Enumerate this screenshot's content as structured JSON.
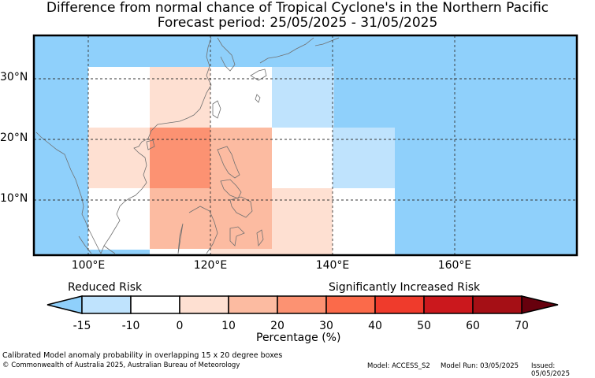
{
  "title_line1": "Difference from normal chance of Tropical Cyclone's in the Northern Pacific",
  "title_line2": "Forecast period: 25/05/2025 - 31/05/2025",
  "map": {
    "lat_labels": [
      "30°N",
      "20°N",
      "10°N"
    ],
    "lon_labels": [
      "100°E",
      "120°E",
      "140°E",
      "160°E"
    ],
    "ocean_color": "#8fd0fb",
    "cells": [
      {
        "lon": [
          100,
          110
        ],
        "lat": [
          27,
          32
        ],
        "category": "-10 to 0"
      },
      {
        "lon": [
          110,
          120
        ],
        "lat": [
          27,
          32
        ],
        "category": "0 to 10"
      },
      {
        "lon": [
          120,
          130
        ],
        "lat": [
          27,
          32
        ],
        "category": "-10 to 0"
      },
      {
        "lon": [
          130,
          140
        ],
        "lat": [
          27,
          32
        ],
        "category": "-15 to -10"
      },
      {
        "lon": [
          100,
          110
        ],
        "lat": [
          22,
          27
        ],
        "category": "-10 to 0"
      },
      {
        "lon": [
          110,
          120
        ],
        "lat": [
          22,
          27
        ],
        "category": "0 to 10"
      },
      {
        "lon": [
          120,
          130
        ],
        "lat": [
          22,
          27
        ],
        "category": "-10 to 0"
      },
      {
        "lon": [
          130,
          140
        ],
        "lat": [
          22,
          27
        ],
        "category": "-15 to -10"
      },
      {
        "lon": [
          100,
          110
        ],
        "lat": [
          17,
          22
        ],
        "category": "0 to 10"
      },
      {
        "lon": [
          110,
          120
        ],
        "lat": [
          17,
          22
        ],
        "category": "20 to 30"
      },
      {
        "lon": [
          120,
          130
        ],
        "lat": [
          17,
          22
        ],
        "category": "10 to 20"
      },
      {
        "lon": [
          130,
          140
        ],
        "lat": [
          17,
          22
        ],
        "category": "-10 to 0"
      },
      {
        "lon": [
          140,
          150
        ],
        "lat": [
          17,
          22
        ],
        "category": "-15 to -10"
      },
      {
        "lon": [
          100,
          110
        ],
        "lat": [
          12,
          17
        ],
        "category": "0 to 10"
      },
      {
        "lon": [
          110,
          120
        ],
        "lat": [
          12,
          17
        ],
        "category": "20 to 30"
      },
      {
        "lon": [
          120,
          130
        ],
        "lat": [
          12,
          17
        ],
        "category": "10 to 20"
      },
      {
        "lon": [
          130,
          140
        ],
        "lat": [
          12,
          17
        ],
        "category": "-10 to 0"
      },
      {
        "lon": [
          140,
          150
        ],
        "lat": [
          12,
          17
        ],
        "category": "-15 to -10"
      },
      {
        "lon": [
          100,
          110
        ],
        "lat": [
          7,
          12
        ],
        "category": "-10 to 0"
      },
      {
        "lon": [
          110,
          120
        ],
        "lat": [
          7,
          12
        ],
        "category": "10 to 20"
      },
      {
        "lon": [
          120,
          130
        ],
        "lat": [
          7,
          12
        ],
        "category": "10 to 20"
      },
      {
        "lon": [
          130,
          140
        ],
        "lat": [
          7,
          12
        ],
        "category": "0 to 10"
      },
      {
        "lon": [
          140,
          150
        ],
        "lat": [
          7,
          12
        ],
        "category": "-10 to 0"
      },
      {
        "lon": [
          100,
          110
        ],
        "lat": [
          2,
          7
        ],
        "category": "-10 to 0"
      },
      {
        "lon": [
          110,
          120
        ],
        "lat": [
          2,
          7
        ],
        "category": "10 to 20"
      },
      {
        "lon": [
          120,
          130
        ],
        "lat": [
          2,
          7
        ],
        "category": "10 to 20"
      },
      {
        "lon": [
          130,
          140
        ],
        "lat": [
          2,
          7
        ],
        "category": "0 to 10"
      },
      {
        "lon": [
          140,
          150
        ],
        "lat": [
          2,
          7
        ],
        "category": "-10 to 0"
      },
      {
        "lon": [
          110,
          120
        ],
        "lat": [
          -3,
          2
        ],
        "category": "-10 to 0"
      },
      {
        "lon": [
          120,
          130
        ],
        "lat": [
          -3,
          2
        ],
        "category": "0 to 10"
      },
      {
        "lon": [
          130,
          140
        ],
        "lat": [
          -3,
          2
        ],
        "category": "0 to 10"
      },
      {
        "lon": [
          140,
          150
        ],
        "lat": [
          -3,
          2
        ],
        "category": "-10 to 0"
      }
    ]
  },
  "colorbar": {
    "left_label": "Reduced Risk",
    "right_label": "Significantly Increased Risk",
    "unit_label": "Percentage (%)",
    "ticks": [
      "-15",
      "-10",
      "0",
      "10",
      "20",
      "30",
      "40",
      "50",
      "60",
      "70"
    ],
    "under_color": "#8fd0fb",
    "over_color": "#67000d",
    "bins": [
      {
        "range": "-15 to -10",
        "color": "#bfe3fd"
      },
      {
        "range": "-10 to 0",
        "color": "#ffffff"
      },
      {
        "range": "0 to 10",
        "color": "#fee0d2"
      },
      {
        "range": "10 to 20",
        "color": "#fcbba1"
      },
      {
        "range": "20 to 30",
        "color": "#fc9272"
      },
      {
        "range": "30 to 40",
        "color": "#fb6a4a"
      },
      {
        "range": "40 to 50",
        "color": "#ef3b2c"
      },
      {
        "range": "50 to 60",
        "color": "#cb181d"
      },
      {
        "range": "60 to 70",
        "color": "#a50f15"
      }
    ]
  },
  "footer": {
    "caption": "Calibrated Model anomaly probability in overlapping 15 x 20 degree boxes",
    "copyright": "© Commonwealth of Australia 2025, Australian Bureau of Meteorology",
    "model": "Model: ACCESS_S2",
    "model_run": "Model Run: 03/05/2025",
    "issued": "Issued: 05/05/2025"
  }
}
